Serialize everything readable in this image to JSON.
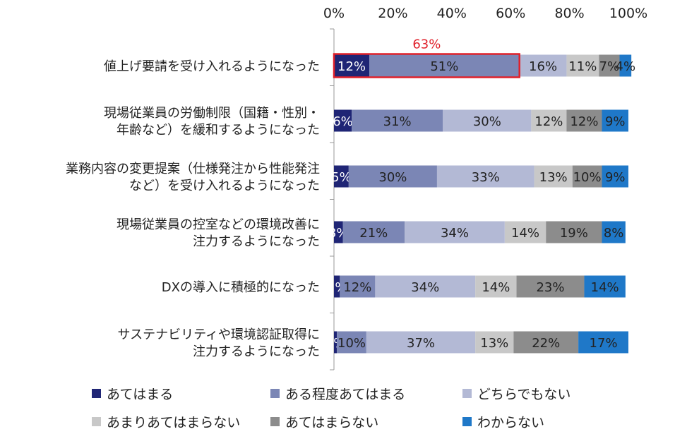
{
  "chart_data": {
    "type": "bar",
    "orientation": "horizontal",
    "stacked": true,
    "percent": true,
    "xlim": [
      0,
      100
    ],
    "x_ticks": [
      "0%",
      "20%",
      "40%",
      "60%",
      "80%",
      "100%"
    ],
    "x_tick_values": [
      0,
      20,
      40,
      60,
      80,
      100
    ],
    "categories": [
      [
        "値上げ要請を受け入れるようになった"
      ],
      [
        "現場従業員の労働制限（国籍・性別・",
        "年齢など）を緩和するようになった"
      ],
      [
        "業務内容の変更提案（仕様発注から性能発注",
        "など）を受け入れるようになった"
      ],
      [
        "現場従業員の控室などの環境改善に",
        "注力するようになった"
      ],
      [
        "DXの導入に積極的になった"
      ],
      [
        "サステナビリティや環境認証取得に",
        "注力するようになった"
      ]
    ],
    "series": [
      {
        "name": "あてはまる",
        "color": "#1f2575",
        "label_color": "#ffffff",
        "values": [
          12,
          6,
          5,
          3,
          2,
          1
        ],
        "labels": [
          "12%",
          "6%",
          "5%",
          "3%",
          "2%",
          "1%"
        ]
      },
      {
        "name": "ある程度あてはまる",
        "color": "#7b86b5",
        "label_color": "#222222",
        "values": [
          51,
          31,
          30,
          21,
          12,
          10
        ],
        "labels": [
          "51%",
          "31%",
          "30%",
          "21%",
          "12%",
          "10%"
        ]
      },
      {
        "name": "どちらでもない",
        "color": "#b3b9d5",
        "label_color": "#222222",
        "values": [
          16,
          30,
          33,
          34,
          34,
          37
        ],
        "labels": [
          "16%",
          "30%",
          "33%",
          "34%",
          "34%",
          "37%"
        ]
      },
      {
        "name": "あまりあてはまらない",
        "color": "#c8c8c8",
        "label_color": "#222222",
        "values": [
          11,
          12,
          13,
          14,
          14,
          13
        ],
        "labels": [
          "11%",
          "12%",
          "13%",
          "14%",
          "14%",
          "13%"
        ]
      },
      {
        "name": "あてはまらない",
        "color": "#8c8c8c",
        "label_color": "#222222",
        "values": [
          7,
          12,
          10,
          19,
          23,
          22
        ],
        "labels": [
          "7%",
          "12%",
          "10%",
          "19%",
          "23%",
          "22%"
        ]
      },
      {
        "name": "わからない",
        "color": "#1f78c8",
        "label_color": "#222222",
        "values": [
          4,
          9,
          9,
          8,
          14,
          17
        ],
        "labels": [
          "4%",
          "9%",
          "9%",
          "8%",
          "14%",
          "17%"
        ]
      }
    ],
    "annotation": {
      "text": "63%",
      "color": "#e0202a",
      "row": 0,
      "spans_series": [
        0,
        1
      ]
    },
    "legend_position": "bottom",
    "grid": false
  }
}
